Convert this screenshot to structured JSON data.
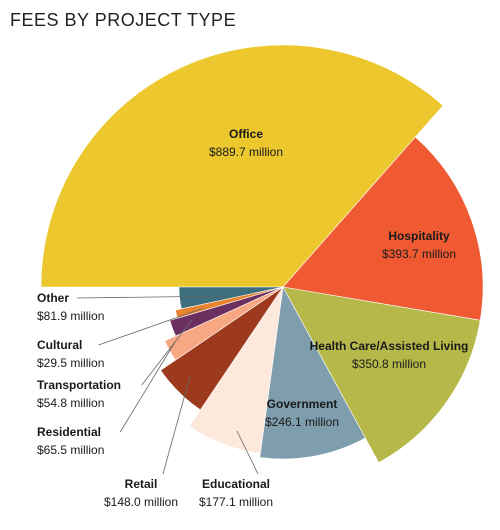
{
  "chart_data": {
    "type": "pie",
    "title": "FEES BY PROJECT TYPE",
    "unit_suffix": " million",
    "slices": [
      {
        "label": "Office",
        "value_text": "$889.7 million",
        "value": 889.7,
        "color": "#ecc72e"
      },
      {
        "label": "Hospitality",
        "value_text": "$393.7 million",
        "value": 393.7,
        "color": "#f05a32"
      },
      {
        "label": "Health Care/Assisted Living",
        "value_text": "$350.8 million",
        "value": 350.8,
        "color": "#b7b84a"
      },
      {
        "label": "Government",
        "value_text": "$246.1 million",
        "value": 246.1,
        "color": "#7f9ead"
      },
      {
        "label": "Educational",
        "value_text": "$177.1 million",
        "value": 177.1,
        "color": "#fde8dc"
      },
      {
        "label": "Retail",
        "value_text": "$148.0 million",
        "value": 148.0,
        "color": "#9d3a1e"
      },
      {
        "label": "Residential",
        "value_text": "$65.5 million",
        "value": 65.5,
        "color": "#f7a882"
      },
      {
        "label": "Transportation",
        "value_text": "$54.8 million",
        "value": 54.8,
        "color": "#6b3060"
      },
      {
        "label": "Cultural",
        "value_text": "$29.5 million",
        "value": 29.5,
        "color": "#e8832e"
      },
      {
        "label": "Other",
        "value_text": "$81.9 million",
        "value": 81.9,
        "color": "#3d6e7e"
      }
    ]
  }
}
